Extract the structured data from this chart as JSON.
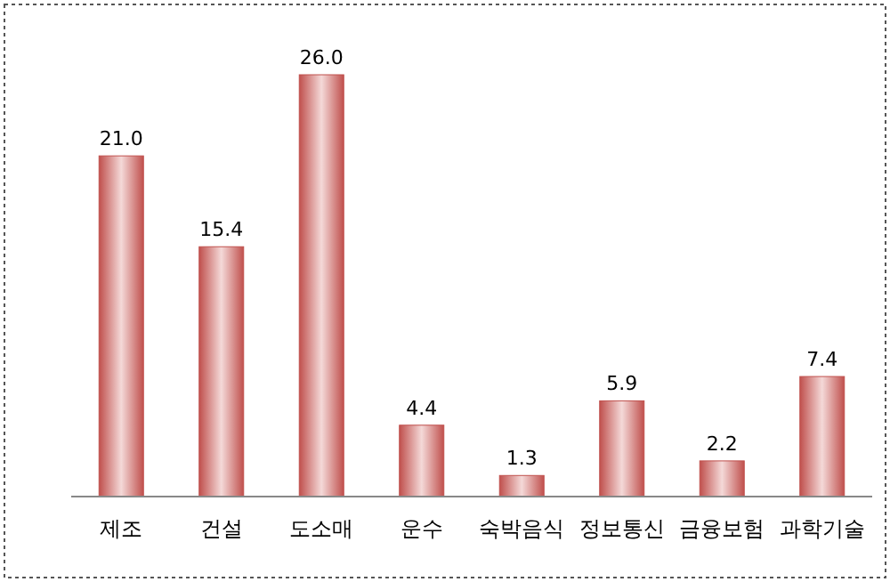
{
  "chart_data": {
    "type": "bar",
    "categories": [
      "제조",
      "건설",
      "도소매",
      "운수",
      "숙박음식",
      "정보통신",
      "금융보험",
      "과학기술"
    ],
    "values": [
      21.0,
      15.4,
      26.0,
      4.4,
      1.3,
      5.9,
      2.2,
      7.4
    ],
    "value_labels": [
      "21.0",
      "15.4",
      "26.0",
      "4.4",
      "1.3",
      "5.9",
      "2.2",
      "7.4"
    ],
    "color": "#c0504d"
  }
}
